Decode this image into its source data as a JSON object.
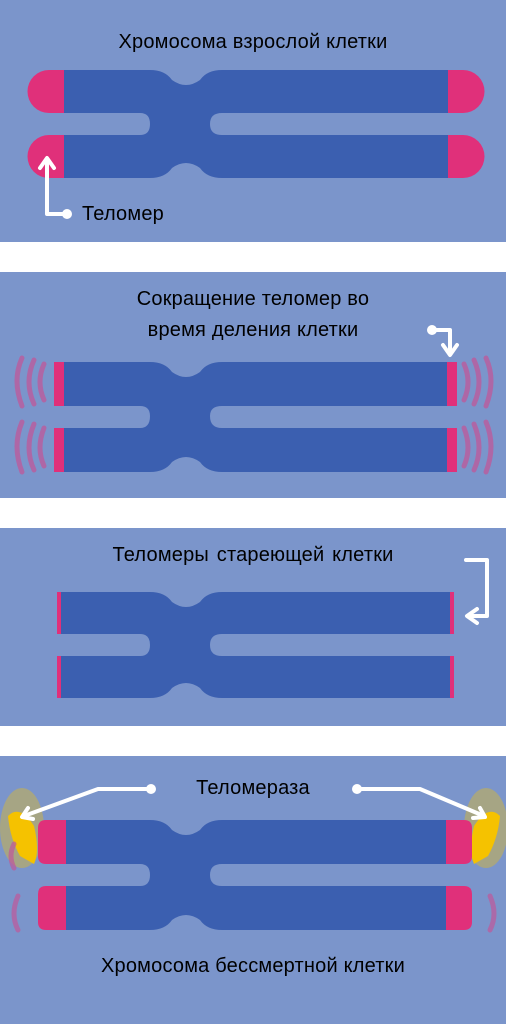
{
  "panels": [
    {
      "caption": "Хромосома взрослой клетки",
      "label": "Теломер"
    },
    {
      "caption_line1": "Сокращение теломер во",
      "caption_line2": "время деления клетки"
    },
    {
      "caption": "Теломеры  стареющей  клетки"
    },
    {
      "label": "Теломераза",
      "caption": "Хромосома бессмертной клетки"
    }
  ],
  "colors": {
    "panel_bg": "#7b95cb",
    "chromatid": "#3b5fb0",
    "telomere": "#e0307a",
    "telomerase": "#f5c200",
    "arrow": "#ffffff"
  }
}
